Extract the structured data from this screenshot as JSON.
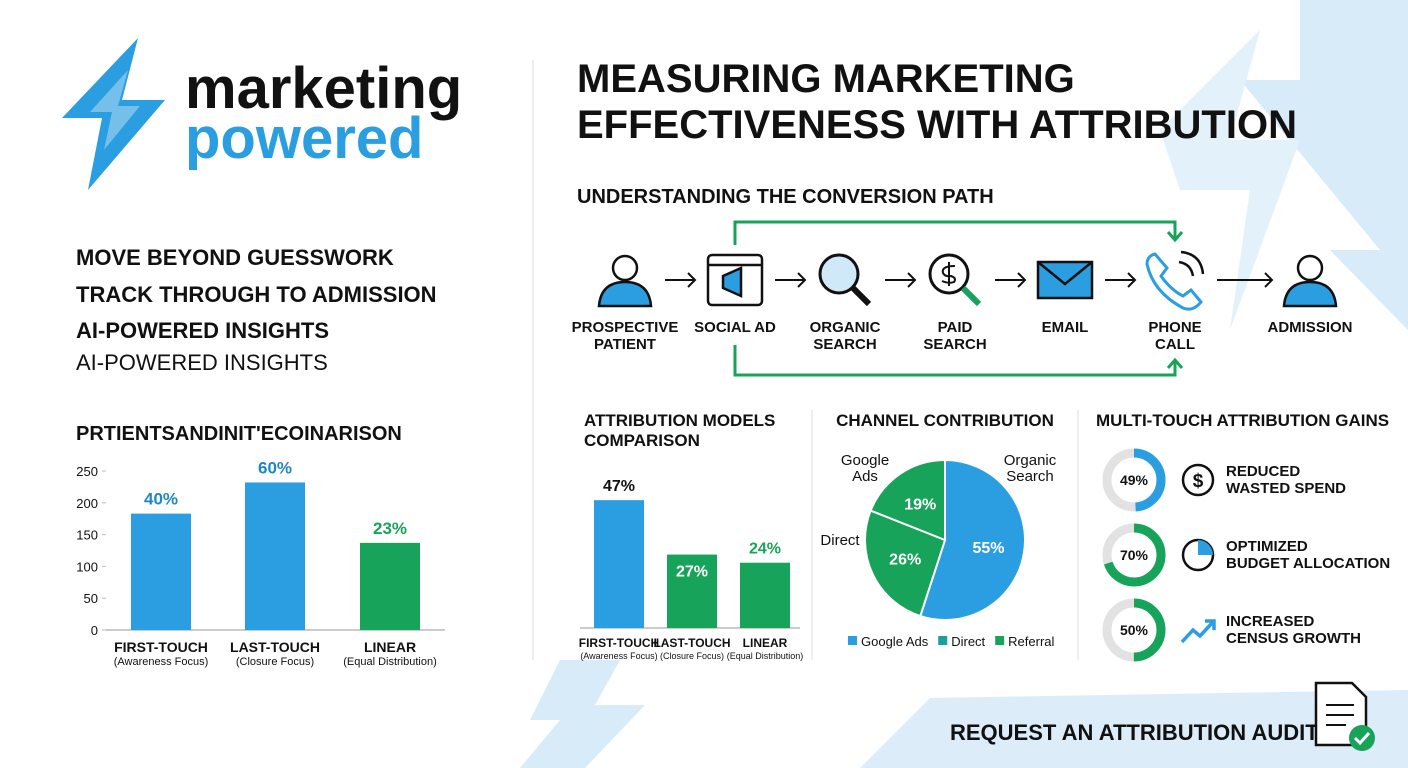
{
  "logo": {
    "line1": "marketing",
    "line2": "powered"
  },
  "title": [
    "MEASURING MARKETING",
    "EFFECTIVENESS WITH ATTRIBUTION"
  ],
  "bullets": [
    "MOVE BEYOND GUESSWORK",
    "TRACK THROUGH TO ADMISSION",
    "AI-POWERED INSIGHTS",
    "AI-POWERED INSIGHTS"
  ],
  "conversion_path": {
    "title": "UNDERSTANDING THE CONVERSION PATH",
    "steps": [
      [
        "PROSPECTIVE",
        "PATIENT"
      ],
      [
        "SOCIAL AD"
      ],
      [
        "ORGANIC",
        "SEARCH"
      ],
      [
        "PAID",
        "SEARCH"
      ],
      [
        "EMAIL"
      ],
      [
        "PHONE",
        "CALL"
      ],
      [
        "ADMISSION"
      ]
    ]
  },
  "chart_data": [
    {
      "type": "bar",
      "title": "PRTIENTSANDINIT'ECOINARISON",
      "categories": [
        "FIRST-TOUCH",
        "LAST-TOUCH",
        "LINEAR"
      ],
      "category_notes": [
        "(Awareness Focus)",
        "(Closure Focus)",
        "(Equal Distribution)"
      ],
      "values": [
        183,
        232,
        137
      ],
      "annotations": [
        "40%",
        "60%",
        "23%"
      ],
      "colors": [
        "#2a9ee0",
        "#2a9ee0",
        "#18a35a"
      ],
      "annotation_colors": [
        "#1f86c7",
        "#1f86c7",
        "#18a35a"
      ],
      "ylim": [
        0,
        250
      ],
      "yticks": [
        0,
        50,
        100,
        150,
        200,
        250
      ]
    },
    {
      "type": "bar",
      "title": [
        "ATTRIBUTION MODELS",
        "COMPARISON"
      ],
      "categories": [
        "FIRST-TOUCH",
        "LAST-TOUCH",
        "LINEAR"
      ],
      "category_notes": [
        "(Awareness Focus)",
        "(Closure Focus)",
        "(Equal Distribution)"
      ],
      "values": [
        47,
        27,
        24
      ],
      "value_labels": [
        "47%",
        "27%",
        "24%"
      ],
      "colors": [
        "#2a9ee0",
        "#18a35a",
        "#18a35a"
      ]
    },
    {
      "type": "pie",
      "title": "CHANNEL CONTRIBUTION",
      "values": [
        55,
        26,
        19
      ],
      "value_labels": [
        "55%",
        "26%",
        "19%"
      ],
      "colors": [
        "#2a9ee0",
        "#18a35a",
        "#18a35a"
      ],
      "slice_labels": [
        [
          "Organic",
          "Search"
        ],
        [
          "Direct"
        ],
        [
          "Google",
          "Ads"
        ]
      ],
      "legend": [
        {
          "name": "Google Ads",
          "color": "#2a9ee0"
        },
        {
          "name": "Direct",
          "color": "#1aa0a0"
        },
        {
          "name": "Referral",
          "color": "#18a35a"
        }
      ]
    },
    {
      "type": "donut",
      "title": "MULTI-TOUCH ATTRIBUTION GAINS",
      "values": [
        49,
        70,
        50
      ],
      "value_labels": [
        "49%",
        "70%",
        "50%"
      ],
      "colors": [
        "#2a9ee0",
        "#18a35a",
        "#18a35a"
      ],
      "categories": [
        [
          "REDUCED",
          "WASTED SPEND"
        ],
        [
          "OPTIMIZED",
          "BUDGET ALLOCATION"
        ],
        [
          "INCREASED",
          "CENSUS GROWTH"
        ]
      ]
    }
  ],
  "cta": "REQUEST AN ATTRIBUTION AUDIT"
}
